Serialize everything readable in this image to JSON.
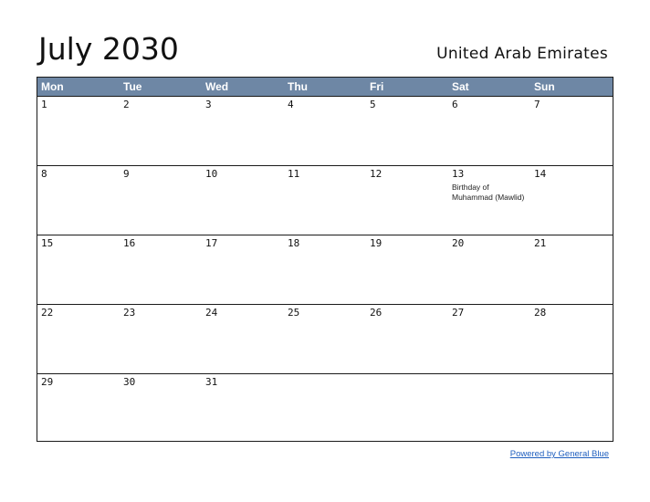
{
  "header": {
    "title": "July 2030",
    "country": "United Arab Emirates"
  },
  "calendar": {
    "weekdays": [
      "Mon",
      "Tue",
      "Wed",
      "Thu",
      "Fri",
      "Sat",
      "Sun"
    ],
    "weeks": [
      [
        {
          "day": "1"
        },
        {
          "day": "2"
        },
        {
          "day": "3"
        },
        {
          "day": "4"
        },
        {
          "day": "5"
        },
        {
          "day": "6"
        },
        {
          "day": "7"
        }
      ],
      [
        {
          "day": "8"
        },
        {
          "day": "9"
        },
        {
          "day": "10"
        },
        {
          "day": "11"
        },
        {
          "day": "12"
        },
        {
          "day": "13",
          "holiday": "Birthday of Muhammad (Mawlid)"
        },
        {
          "day": "14"
        }
      ],
      [
        {
          "day": "15"
        },
        {
          "day": "16"
        },
        {
          "day": "17"
        },
        {
          "day": "18"
        },
        {
          "day": "19"
        },
        {
          "day": "20"
        },
        {
          "day": "21"
        }
      ],
      [
        {
          "day": "22"
        },
        {
          "day": "23"
        },
        {
          "day": "24"
        },
        {
          "day": "25"
        },
        {
          "day": "26"
        },
        {
          "day": "27"
        },
        {
          "day": "28"
        }
      ],
      [
        {
          "day": "29"
        },
        {
          "day": "30"
        },
        {
          "day": "31"
        },
        {
          "day": ""
        },
        {
          "day": ""
        },
        {
          "day": ""
        },
        {
          "day": ""
        }
      ]
    ]
  },
  "footer": {
    "link_text": "Powered by General Blue"
  },
  "colors": {
    "header_background": "#6e87a5",
    "link": "#1f5fbf"
  }
}
